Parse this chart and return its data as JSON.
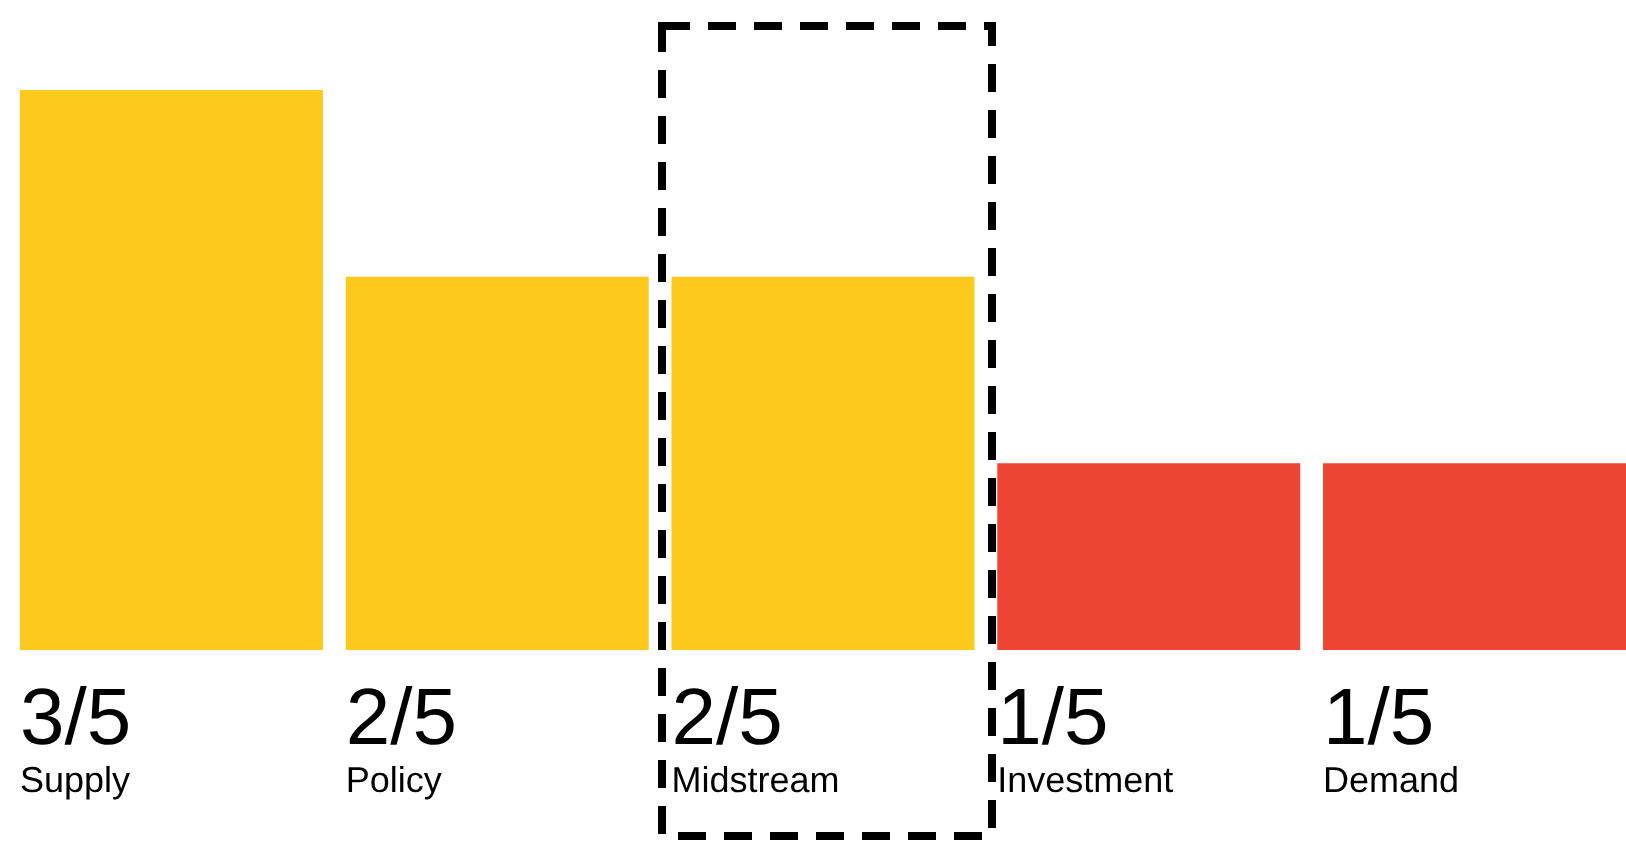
{
  "chart_data": {
    "type": "bar",
    "categories": [
      "Supply",
      "Policy",
      "Midstream",
      "Investment",
      "Demand"
    ],
    "values": [
      0.6,
      0.4,
      0.4,
      0.2,
      0.2
    ],
    "colors": [
      "#fdc91c",
      "#fdc91c",
      "#fdc91c",
      "#ee4433",
      "#ee4433"
    ],
    "value_labels": [
      "3/5",
      "2/5",
      "2/5",
      "1/5",
      "1/5"
    ]
  }
}
